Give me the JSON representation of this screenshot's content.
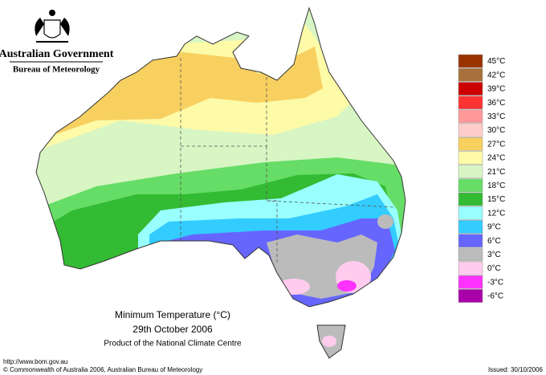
{
  "header": {
    "government": "Australian Government",
    "bureau": "Bureau of Meteorology"
  },
  "legend": [
    {
      "label": "45°C",
      "color": "#993300"
    },
    {
      "label": "42°C",
      "color": "#a8703c"
    },
    {
      "label": "39°C",
      "color": "#cc0000"
    },
    {
      "label": "36°C",
      "color": "#ff3333"
    },
    {
      "label": "33°C",
      "color": "#ff9999"
    },
    {
      "label": "30°C",
      "color": "#ffcccc"
    },
    {
      "label": "27°C",
      "color": "#f7d060"
    },
    {
      "label": "24°C",
      "color": "#fdfaa8"
    },
    {
      "label": "21°C",
      "color": "#d8f5c4"
    },
    {
      "label": "18°C",
      "color": "#66dd66"
    },
    {
      "label": "15°C",
      "color": "#33bb33"
    },
    {
      "label": "12°C",
      "color": "#99ffff"
    },
    {
      "label": "9°C",
      "color": "#33ccff"
    },
    {
      "label": "6°C",
      "color": "#6666ff"
    },
    {
      "label": "3°C",
      "color": "#bbbbbb"
    },
    {
      "label": "0°C",
      "color": "#ffccee"
    },
    {
      "label": "-3°C",
      "color": "#ff33ff"
    },
    {
      "label": "-6°C",
      "color": "#aa00aa"
    }
  ],
  "map": {
    "title": "Minimum Temperature (°C)",
    "date": "29th October 2006",
    "product": "Product of the National Climate Centre"
  },
  "footer": {
    "url": "http://www.bom.gov.au",
    "copyright": "© Commonwealth of Australia 2006, Australian Bureau of Meteorology",
    "issued": "Issued: 30/10/2006"
  }
}
